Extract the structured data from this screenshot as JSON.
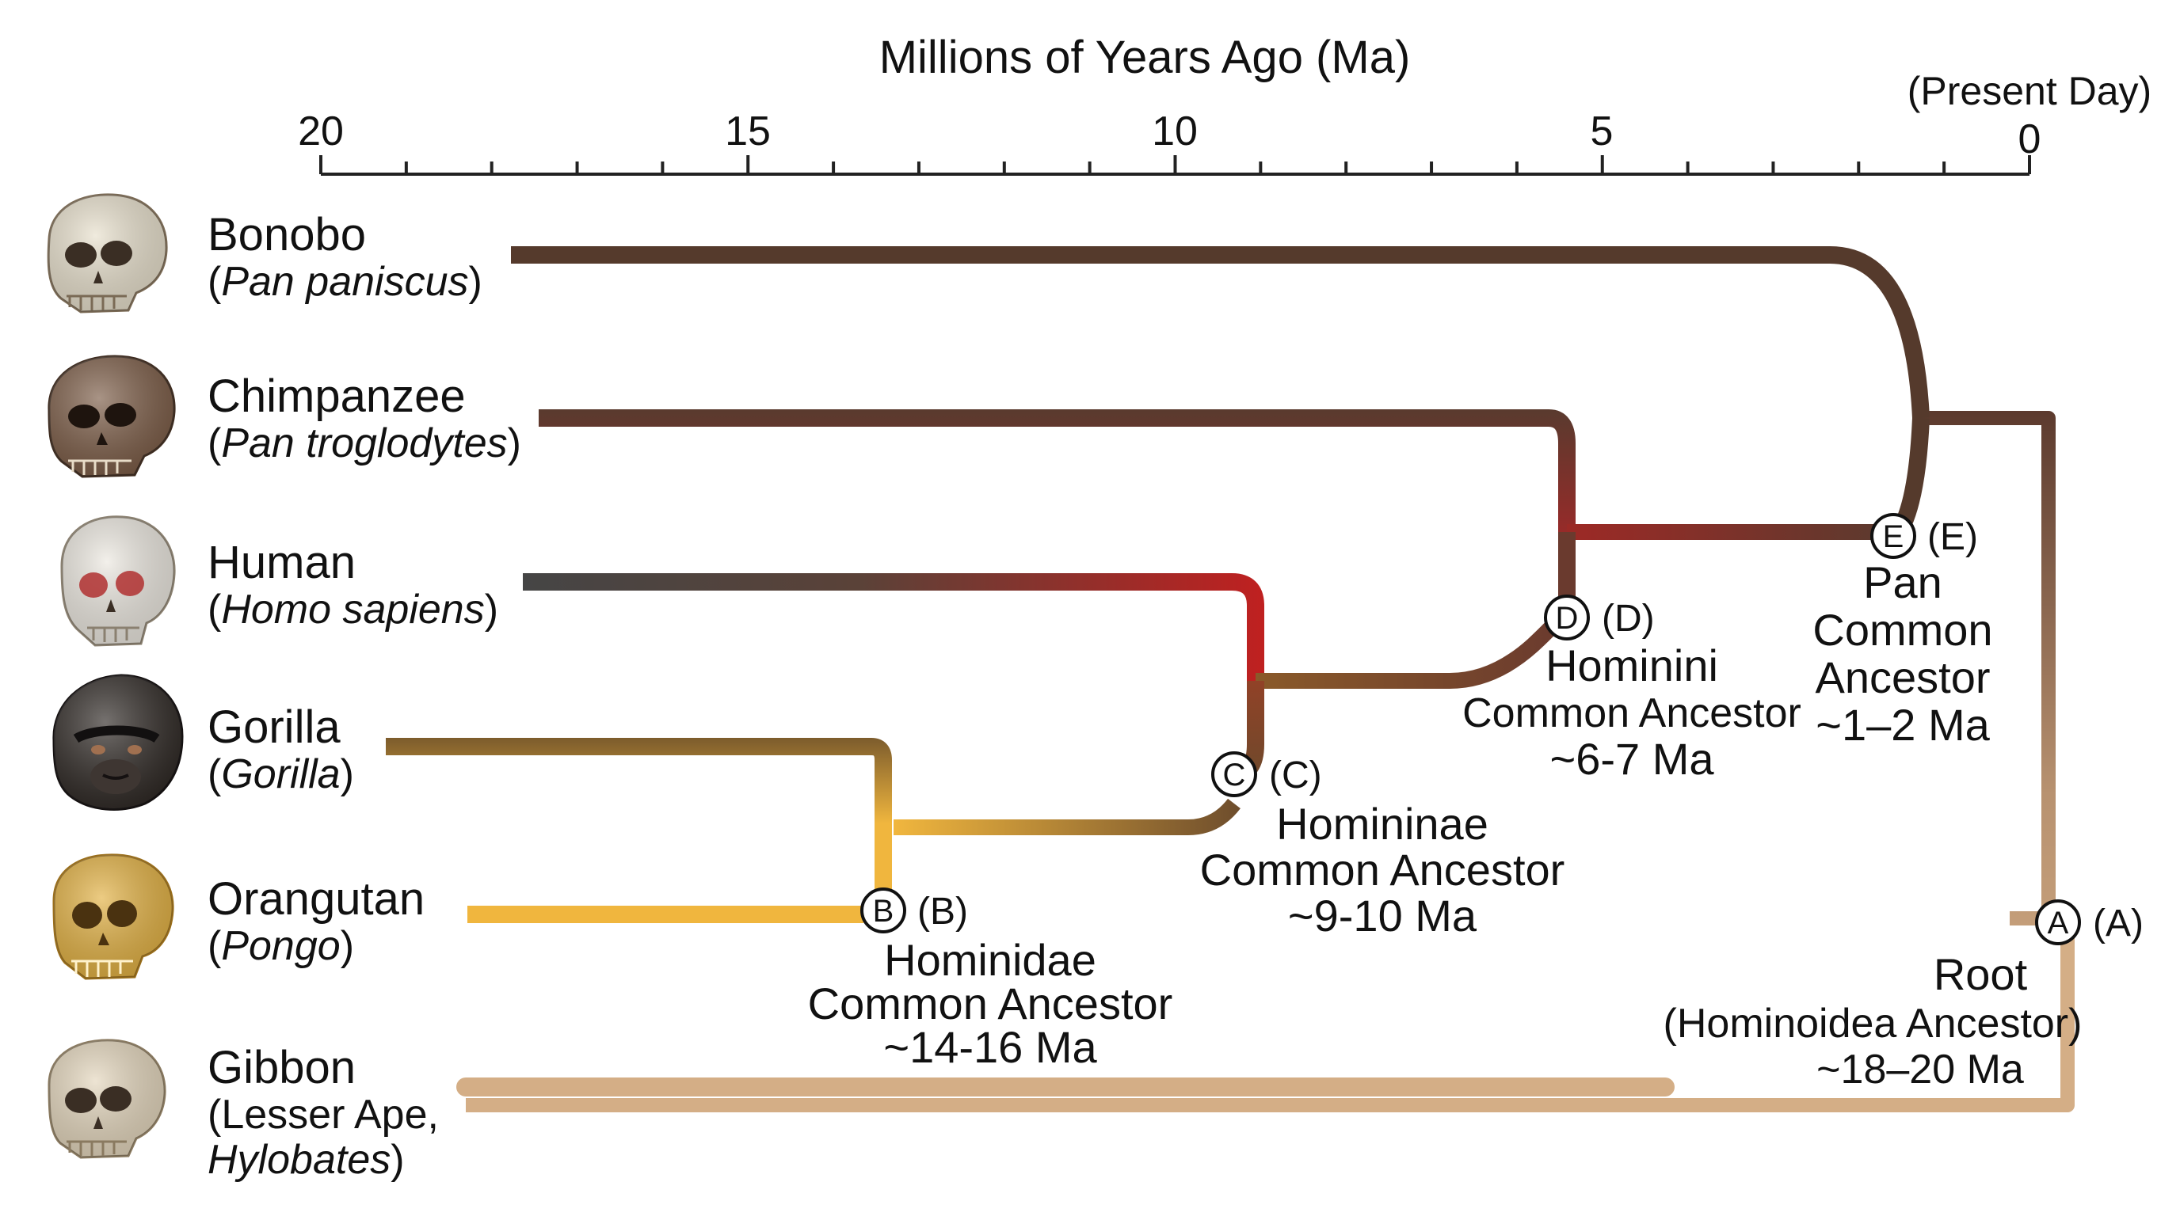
{
  "axis": {
    "title": "Millions of Years Ago (Ma)",
    "present_label": "(Present Day)",
    "ticks": [
      "20",
      "15",
      "10",
      "5",
      "0"
    ]
  },
  "species": [
    {
      "common": "Bonobo",
      "scientific_open": "(",
      "scientific": "Pan paniscus",
      "scientific_close": ")",
      "skull_color": "#e8e0cc"
    },
    {
      "common": "Chimpanzee",
      "scientific_open": "(",
      "scientific": "Pan troglodytes",
      "scientific_close": ")",
      "skull_color": "#7a5a44"
    },
    {
      "common": "Human",
      "scientific_open": "(",
      "scientific": "Homo sapiens",
      "scientific_close": ")",
      "skull_color": "#ece8e0"
    },
    {
      "common": "Gorilla",
      "scientific_open": "(",
      "scientific": "Gorilla",
      "scientific_close": ")",
      "skull_color": "#2c2622"
    },
    {
      "common": "Orangutan",
      "scientific_open": "(",
      "scientific": "Pongo",
      "scientific_close": ")",
      "skull_color": "#e2b040"
    },
    {
      "common": "Gibbon",
      "scientific_line1": "(Lesser Ape,",
      "scientific": "Hylobates",
      "scientific_close": ")",
      "skull_color": "#e4d6bc"
    }
  ],
  "nodes": {
    "A": {
      "letter": "A",
      "paren": "(A)",
      "title": "Root",
      "line2": "(Hominoidea Ancestor)",
      "line3": "~18–20 Ma"
    },
    "B": {
      "letter": "B",
      "paren": "(B)",
      "title": "Hominidae",
      "line2": "Common Ancestor",
      "line3": "~14-16 Ma"
    },
    "C": {
      "letter": "C",
      "paren": "(C)",
      "title": "Homininae",
      "line2": "Common Ancestor",
      "line3": "~9-10 Ma"
    },
    "D": {
      "letter": "D",
      "paren": "(D)",
      "title": "Hominini",
      "line2": "Common Ancestor",
      "line3": "~6-7 Ma"
    },
    "E": {
      "letter": "E",
      "paren": "(E)",
      "title": "Pan",
      "line2": "Common",
      "line3": "Ancestor",
      "line4": "~1–2 Ma"
    }
  },
  "colors": {
    "dark_brown": "#553a2c",
    "red": "#b32222",
    "gold": "#f0b63e",
    "tan": "#d4ae86",
    "gray": "#4a4a4a"
  }
}
